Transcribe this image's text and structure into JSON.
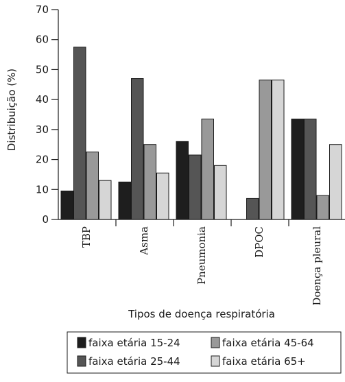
{
  "chart_data": {
    "type": "bar",
    "ylabel": "Distribuição (%)",
    "xlabel": "Tipos de doença respiratória",
    "ylim": [
      0,
      70
    ],
    "yticks": [
      0,
      10,
      20,
      30,
      40,
      50,
      60,
      70
    ],
    "categories": [
      "TBP",
      "Asma",
      "Pneumonia",
      "DPOC",
      "Doença pleural"
    ],
    "series": [
      {
        "name": "faixa etária 15-24",
        "color": "#1e1e1e",
        "values": [
          9.5,
          12.5,
          26,
          0,
          33.5
        ]
      },
      {
        "name": "faixa etária 25-44",
        "color": "#555555",
        "values": [
          57.5,
          47,
          21.5,
          7,
          33.5
        ]
      },
      {
        "name": "faixa etária 45-64",
        "color": "#999999",
        "values": [
          22.5,
          25,
          33.5,
          46.5,
          8
        ]
      },
      {
        "name": "faixa etária 65+",
        "color": "#d6d6d6",
        "values": [
          13,
          15.5,
          18,
          46.5,
          25
        ]
      }
    ],
    "grid": false,
    "legend_position": "bottom-right"
  }
}
